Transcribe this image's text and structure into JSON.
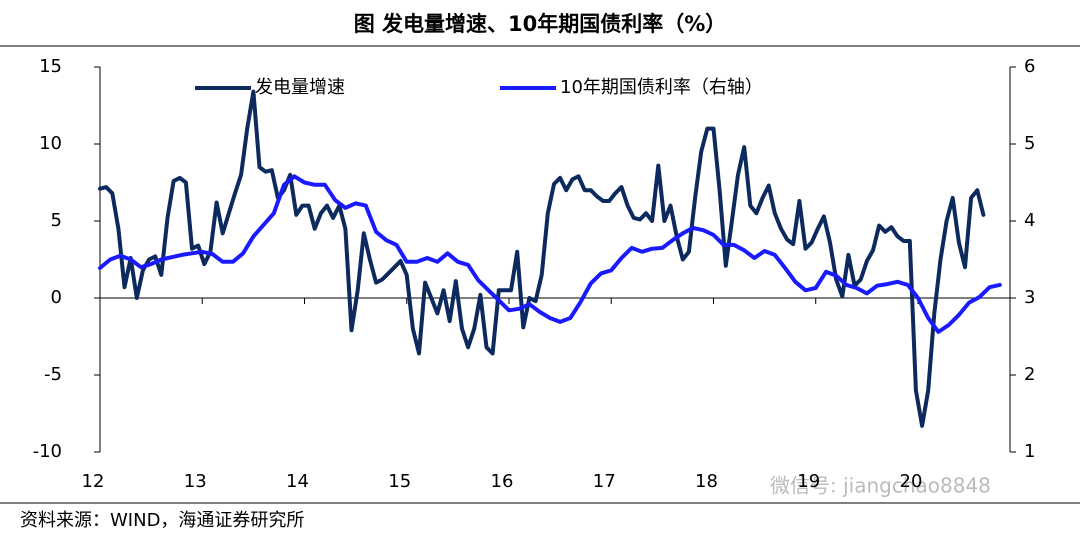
{
  "chart_data": {
    "type": "line",
    "title": "图 发电量增速、10年期国债利率（%）",
    "source": "资料来源：WIND，海通证券研究所",
    "watermark": "微信号: jiangchao8848",
    "xlim": [
      12,
      20.9
    ],
    "xticks": [
      12,
      13,
      14,
      15,
      16,
      17,
      18,
      19,
      20
    ],
    "ylim": [
      -10,
      15
    ],
    "yticks": [
      -10,
      -5,
      0,
      5,
      10,
      15
    ],
    "y2lim": [
      1,
      6
    ],
    "y2ticks": [
      1,
      2,
      3,
      4,
      5,
      6
    ],
    "series": [
      {
        "name": "发电量增速",
        "color": "#0d2a5e",
        "x": [
          12,
          12.06,
          12.12,
          12.18,
          12.24,
          12.3,
          12.36,
          12.42,
          12.48,
          12.54,
          12.6,
          12.66,
          12.72,
          12.78,
          12.84,
          12.9,
          12.96,
          13.02,
          13.08,
          13.14,
          13.2,
          13.26,
          13.32,
          13.38,
          13.44,
          13.5,
          13.56,
          13.62,
          13.68,
          13.74,
          13.8,
          13.86,
          13.92,
          13.98,
          14.04,
          14.1,
          14.16,
          14.22,
          14.28,
          14.34,
          14.4,
          14.46,
          14.52,
          14.58,
          14.64,
          14.7,
          14.76,
          14.82,
          14.88,
          14.94,
          15,
          15.06,
          15.12,
          15.18,
          15.24,
          15.3,
          15.36,
          15.42,
          15.48,
          15.54,
          15.6,
          15.66,
          15.72,
          15.78,
          15.84,
          15.9,
          15.96,
          16.02,
          16.08,
          16.14,
          16.2,
          16.26,
          16.32,
          16.38,
          16.44,
          16.5,
          16.56,
          16.62,
          16.68,
          16.74,
          16.8,
          16.86,
          16.92,
          16.98,
          17.04,
          17.1,
          17.16,
          17.22,
          17.28,
          17.34,
          17.4,
          17.46,
          17.52,
          17.58,
          17.64,
          17.7,
          17.76,
          17.82,
          17.88,
          17.94,
          18,
          18.06,
          18.12,
          18.18,
          18.24,
          18.3,
          18.36,
          18.42,
          18.48,
          18.54,
          18.6,
          18.66,
          18.72,
          18.78,
          18.84,
          18.9,
          18.96,
          19.02,
          19.08,
          19.14,
          19.2,
          19.26,
          19.32,
          19.38,
          19.44,
          19.5,
          19.56,
          19.62,
          19.68,
          19.74,
          19.8,
          19.86,
          19.92,
          19.98,
          20.04,
          20.1,
          20.16,
          20.22,
          20.28,
          20.34,
          20.4,
          20.46,
          20.52,
          20.58,
          20.64
        ],
        "values": [
          7.1,
          7.2,
          6.8,
          4.5,
          0.7,
          2.6,
          0,
          1.8,
          2.5,
          2.7,
          1.5,
          5.2,
          7.6,
          7.8,
          7.5,
          3.2,
          3.4,
          2.2,
          3,
          6.2,
          4.2,
          5.5,
          6.8,
          8,
          11,
          13.4,
          8.5,
          8.2,
          8.3,
          6.5,
          7,
          8,
          5.4,
          6,
          6,
          4.5,
          5.5,
          6,
          5.2,
          6,
          4.5,
          -2.1,
          0.5,
          4.2,
          2.5,
          1,
          1.2,
          1.6,
          2,
          2.4,
          1.5,
          -2,
          -3.6,
          1,
          0,
          -1,
          0.5,
          -1.5,
          1.1,
          -2,
          -3.2,
          -2,
          0.2,
          -3.2,
          -3.6,
          0.5,
          0.5,
          0.5,
          3,
          -1.9,
          0,
          -0.2,
          1.5,
          5.5,
          7.4,
          7.8,
          7,
          7.7,
          7.9,
          7,
          7,
          6.6,
          6.3,
          6.3,
          6.8,
          7.2,
          6,
          5.2,
          5.1,
          5.5,
          5,
          8.6,
          5,
          6,
          4,
          2.5,
          3,
          6.5,
          9.5,
          11,
          11,
          7,
          2.1,
          5,
          8,
          9.8,
          6,
          5.5,
          6.5,
          7.3,
          5.5,
          4.5,
          3.8,
          3.5,
          6.3,
          3.2,
          3.6,
          4.5,
          5.3,
          3.6,
          1.2,
          0.1,
          2.8,
          0.8,
          1.2,
          2.4,
          3.1,
          4.7,
          4.3,
          4.6,
          4,
          3.7,
          3.7,
          -6,
          -8.3,
          -6,
          -1,
          2.5,
          5,
          6.5,
          3.6,
          2,
          6.5,
          7,
          5.4
        ]
      },
      {
        "name": "10年期国债利率（右轴）",
        "color": "#1a1aff",
        "axis": "y2",
        "x": [
          12,
          12.1,
          12.2,
          12.3,
          12.4,
          12.5,
          12.6,
          12.7,
          12.8,
          12.9,
          13,
          13.1,
          13.2,
          13.3,
          13.4,
          13.5,
          13.6,
          13.7,
          13.8,
          13.9,
          14,
          14.1,
          14.2,
          14.3,
          14.4,
          14.5,
          14.6,
          14.7,
          14.8,
          14.9,
          15,
          15.1,
          15.2,
          15.3,
          15.4,
          15.5,
          15.6,
          15.7,
          15.8,
          15.9,
          16,
          16.1,
          16.2,
          16.3,
          16.4,
          16.5,
          16.6,
          16.7,
          16.8,
          16.9,
          17,
          17.1,
          17.2,
          17.3,
          17.4,
          17.5,
          17.6,
          17.7,
          17.8,
          17.9,
          18,
          18.1,
          18.2,
          18.3,
          18.4,
          18.5,
          18.6,
          18.7,
          18.8,
          18.9,
          19,
          19.1,
          19.2,
          19.3,
          19.4,
          19.5,
          19.6,
          19.7,
          19.8,
          19.9,
          20,
          20.1,
          20.2,
          20.3,
          20.4,
          20.5,
          20.6,
          20.7,
          20.8
        ],
        "values": [
          3.39,
          3.5,
          3.55,
          3.5,
          3.4,
          3.44,
          3.5,
          3.53,
          3.56,
          3.58,
          3.6,
          3.57,
          3.47,
          3.47,
          3.58,
          3.8,
          3.95,
          4.1,
          4.47,
          4.58,
          4.5,
          4.47,
          4.47,
          4.27,
          4.17,
          4.23,
          4.2,
          3.86,
          3.75,
          3.69,
          3.47,
          3.47,
          3.52,
          3.47,
          3.58,
          3.47,
          3.43,
          3.23,
          3.1,
          2.97,
          2.84,
          2.86,
          2.92,
          2.82,
          2.74,
          2.69,
          2.74,
          2.95,
          3.19,
          3.32,
          3.36,
          3.52,
          3.65,
          3.6,
          3.64,
          3.65,
          3.75,
          3.84,
          3.91,
          3.88,
          3.82,
          3.69,
          3.69,
          3.62,
          3.52,
          3.61,
          3.56,
          3.39,
          3.21,
          3.1,
          3.13,
          3.34,
          3.29,
          3.17,
          3.13,
          3.06,
          3.16,
          3.18,
          3.21,
          3.17,
          3,
          2.74,
          2.56,
          2.65,
          2.78,
          2.94,
          3.01,
          3.14,
          3.17
        ]
      }
    ]
  }
}
